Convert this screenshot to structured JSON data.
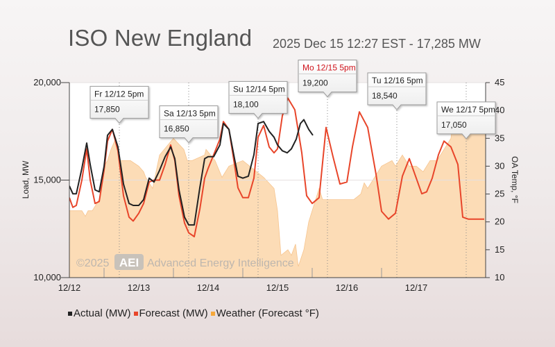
{
  "header": {
    "title": "ISO New England",
    "subtitle": "2025 Dec 15 12:27 EST - 17,285 MW"
  },
  "legend": {
    "items": [
      {
        "label": "Actual (MW)",
        "color": "#222222"
      },
      {
        "label": "Forecast (MW)",
        "color": "#e8452a"
      },
      {
        "label": "Weather (Forecast °F)",
        "color": "#f6a83a"
      }
    ]
  },
  "watermark": {
    "year": "©2025",
    "logo": "AEI",
    "text": "Advanced Energy Intelligence"
  },
  "chart_data": {
    "type": "line",
    "ylabel": "Load, MW",
    "y2label": "OA Temp, °F",
    "ylim": [
      10000,
      20000
    ],
    "y2lim": [
      10,
      45
    ],
    "y_ticks": [
      "10,000",
      "15,000",
      "20,000"
    ],
    "y2_ticks": [
      "10",
      "15",
      "20",
      "25",
      "30",
      "35",
      "40",
      "45"
    ],
    "x_ticks": [
      "12/12",
      "12/13",
      "12/14",
      "12/15",
      "12/16",
      "12/17"
    ],
    "xlim": [
      0,
      6
    ],
    "colors": {
      "actual": "#222222",
      "forecast": "#e8452a",
      "weather_fill": "#fcdcb6",
      "weather_edge": "#f6c48e"
    },
    "series": [
      {
        "name": "Actual (MW)",
        "x": [
          0,
          0.05,
          0.1,
          0.18,
          0.25,
          0.3,
          0.37,
          0.43,
          0.5,
          0.55,
          0.62,
          0.7,
          0.78,
          0.86,
          0.92,
          1,
          1.07,
          1.15,
          1.22,
          1.3,
          1.38,
          1.46,
          1.52,
          1.58,
          1.66,
          1.72,
          1.8,
          1.88,
          1.95,
          2,
          2.08,
          2.17,
          2.22,
          2.3,
          2.38,
          2.43,
          2.5,
          2.58,
          2.66,
          2.72,
          2.8,
          2.88,
          2.95,
          3,
          3.07,
          3.14,
          3.2,
          3.27,
          3.33,
          3.38,
          3.45,
          3.51
        ],
        "values": [
          14700,
          14300,
          14300,
          15600,
          16900,
          15800,
          14500,
          14400,
          15700,
          17300,
          17600,
          16700,
          14800,
          13800,
          13700,
          13700,
          14000,
          15100,
          14900,
          15500,
          16200,
          16700,
          16100,
          14500,
          13100,
          12700,
          12700,
          14600,
          16100,
          16200,
          16200,
          16800,
          17900,
          17600,
          16100,
          15200,
          15100,
          15200,
          16300,
          17900,
          18000,
          17500,
          17200,
          16800,
          16500,
          16400,
          16600,
          17100,
          17900,
          18100,
          17600,
          17300
        ]
      },
      {
        "name": "Forecast (MW)",
        "x": [
          0,
          0.05,
          0.1,
          0.18,
          0.25,
          0.3,
          0.37,
          0.43,
          0.5,
          0.55,
          0.62,
          0.7,
          0.78,
          0.86,
          0.92,
          1,
          1.07,
          1.15,
          1.22,
          1.3,
          1.38,
          1.46,
          1.52,
          1.58,
          1.66,
          1.72,
          1.8,
          1.88,
          1.95,
          2,
          2.08,
          2.17,
          2.22,
          2.3,
          2.38,
          2.43,
          2.5,
          2.58,
          2.66,
          2.72,
          2.8,
          2.88,
          2.95,
          3,
          3.07,
          3.15,
          3.25,
          3.35,
          3.42,
          3.5,
          3.6,
          3.7,
          3.8,
          3.9,
          4,
          4.08,
          4.18,
          4.3,
          4.42,
          4.5,
          4.6,
          4.7,
          4.8,
          4.9,
          5,
          5.08,
          5.15,
          5.23,
          5.32,
          5.4,
          5.5,
          5.6,
          5.67,
          5.75,
          5.82,
          5.9,
          5.98
        ],
        "values": [
          14100,
          13600,
          13700,
          15000,
          16600,
          15000,
          13800,
          13900,
          15500,
          17000,
          17600,
          16500,
          14200,
          13100,
          12900,
          13300,
          13800,
          14900,
          15000,
          15000,
          15800,
          16800,
          16000,
          14200,
          12800,
          12300,
          12100,
          13500,
          15100,
          15600,
          16300,
          17100,
          18000,
          17600,
          15800,
          14600,
          14100,
          14100,
          15100,
          17200,
          17800,
          16700,
          16400,
          16600,
          18300,
          19200,
          18600,
          16400,
          14200,
          13800,
          14100,
          17700,
          16200,
          14800,
          14900,
          16700,
          18500,
          17700,
          15300,
          13400,
          13000,
          13300,
          15200,
          16100,
          15100,
          14300,
          14400,
          15100,
          16300,
          17000,
          16700,
          15800,
          13100,
          13000,
          13000,
          13000,
          13000
        ]
      },
      {
        "name": "Weather (Forecast °F)",
        "x": [
          0,
          0.05,
          0.08,
          0.18,
          0.23,
          0.27,
          0.33,
          0.43,
          0.5,
          0.55,
          0.6,
          0.67,
          0.72,
          0.85,
          0.88,
          1,
          1.07,
          1.1,
          1.2,
          1.3,
          1.5,
          1.65,
          1.7,
          1.77,
          1.95,
          1.97,
          2.1,
          2.2,
          2.3,
          2.5,
          2.6,
          2.7,
          2.8,
          2.95,
          3,
          3.05,
          3.15,
          3.2,
          3.26,
          3.3,
          3.38,
          3.45,
          3.55,
          3.6,
          3.65,
          3.8,
          4,
          4.1,
          4.2,
          4.25,
          4.3,
          4.5,
          4.65,
          4.7,
          4.8,
          4.9,
          5,
          5.1,
          5.2,
          5.3,
          5.5,
          5.52,
          5.55,
          5.67,
          5.7,
          5.75,
          5.82,
          5.9,
          6
        ],
        "values": [
          22,
          22,
          22,
          22,
          21,
          22,
          22,
          24,
          30,
          31,
          33,
          35,
          31,
          31,
          31,
          30,
          29,
          28,
          26,
          32,
          35,
          33,
          31,
          31,
          32,
          33,
          31,
          28,
          30,
          31,
          30,
          29,
          28,
          26,
          22,
          14,
          15,
          14,
          16,
          12,
          15,
          20,
          24,
          26,
          24,
          24,
          24,
          24,
          25,
          27,
          26,
          30,
          31,
          30,
          32,
          30,
          30,
          29,
          31,
          31,
          35,
          37,
          37,
          37,
          40,
          37,
          40,
          37,
          36
        ]
      }
    ],
    "annotations": [
      {
        "label": "Fr 12/12 5pm",
        "value": "17,850",
        "x": 0.72,
        "y": 17850,
        "highlight": false
      },
      {
        "label": "Sa 12/13 5pm",
        "value": "16,850",
        "x": 1.72,
        "y": 16850,
        "highlight": false
      },
      {
        "label": "Su 12/14 5pm",
        "value": "18,100",
        "x": 2.72,
        "y": 18100,
        "highlight": false
      },
      {
        "label": "Mo 12/15 5pm",
        "value": "19,200",
        "x": 3.72,
        "y": 19200,
        "highlight": true
      },
      {
        "label": "Tu 12/16 5pm",
        "value": "18,540",
        "x": 4.72,
        "y": 18540,
        "highlight": false
      },
      {
        "label": "We 12/17 5pm",
        "value": "17,050",
        "x": 5.72,
        "y": 17050,
        "highlight": false
      }
    ]
  }
}
